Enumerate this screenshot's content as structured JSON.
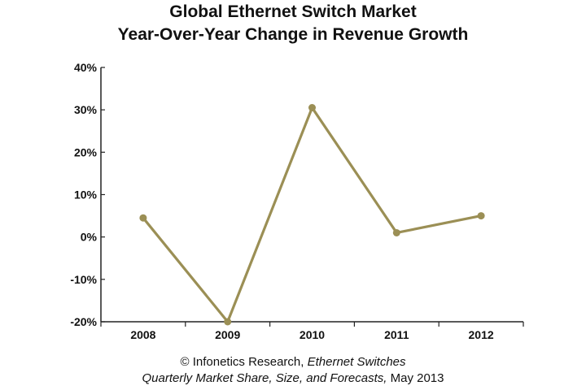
{
  "chart_data": {
    "type": "line",
    "title": "Global Ethernet Switch Market",
    "subtitle": "Year-Over-Year Change in Revenue Growth",
    "xlabel": "",
    "ylabel": "",
    "categories": [
      "2008",
      "2009",
      "2010",
      "2011",
      "2012"
    ],
    "series": [
      {
        "values": [
          4.5,
          -20,
          30.5,
          1,
          5
        ],
        "color": "#9b8f55"
      }
    ],
    "ylim": [
      -20,
      40
    ],
    "yticks": [
      40,
      30,
      20,
      10,
      0,
      -10,
      -20
    ],
    "ytick_labels": [
      "40%",
      "30%",
      "20%",
      "10%",
      "0%",
      "-10%",
      "-20%"
    ],
    "grid": false,
    "legend": "none"
  },
  "caption": {
    "line1_prefix": "© Infonetics Research, ",
    "line1_italic": "Ethernet Switches",
    "line2_italic": "Quarterly Market Share, Size, and Forecasts,",
    "line2_suffix": " May 2013"
  }
}
